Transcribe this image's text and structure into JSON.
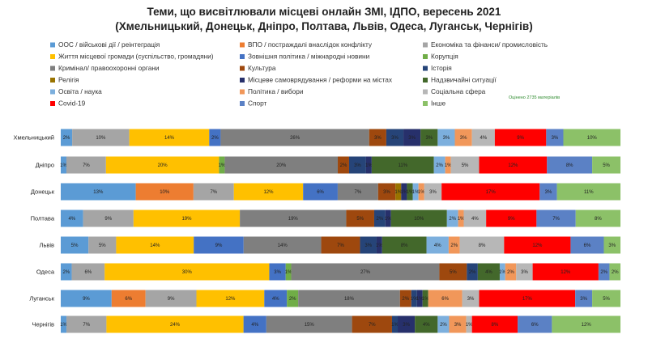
{
  "title_line1": "Теми, що висвітлювали місцеві онлайн ЗМІ, ІДПО, вересень 2021",
  "title_line2": "(Хмельницький, Донецьк, Дніпро, Полтава, Львів, Одеса, Луганськ, Чернігів)",
  "note": "Оцінено 2735 матеріалів",
  "colors": [
    "#5b9bd5",
    "#ed7d31",
    "#a5a5a5",
    "#ffc000",
    "#4472c4",
    "#70ad47",
    "#7f7f7f",
    "#9e480e",
    "#264478",
    "#997300",
    "#27306b",
    "#43682b",
    "#7cafdd",
    "#f1975a",
    "#b7b7b7",
    "#ff0000",
    "#5b81c5",
    "#8cc168"
  ],
  "chart_data": {
    "type": "bar",
    "stacked": "100%",
    "orientation": "horizontal",
    "categories": [
      "Хмельницький",
      "Дніпро",
      "Донецьк",
      "Полтава",
      "Львів",
      "Одеса",
      "Луганськ",
      "Чернігів"
    ],
    "series": [
      {
        "name": "ООС / військові дії / реінтеграція",
        "values": [
          2,
          1,
          13,
          4,
          5,
          2,
          9,
          1
        ]
      },
      {
        "name": "ВПО / постраждалі внаслідок конфлікту",
        "values": [
          0,
          0,
          10,
          0,
          0,
          0,
          6,
          0
        ]
      },
      {
        "name": "Економіка та фінанси/ промисловість",
        "values": [
          10,
          7,
          7,
          9,
          5,
          6,
          9,
          7
        ]
      },
      {
        "name": "Життя місцевої громади (суспільство, громадяни)",
        "values": [
          14,
          20,
          12,
          19,
          14,
          30,
          12,
          24
        ]
      },
      {
        "name": "Зовнішня політика / міжнародні новини",
        "values": [
          2,
          0,
          6,
          0,
          9,
          3,
          4,
          4
        ]
      },
      {
        "name": "Корупція",
        "values": [
          0,
          1,
          0,
          0,
          0,
          1,
          2,
          0
        ]
      },
      {
        "name": "Кримінал/ правоохоронні органи",
        "values": [
          26,
          20,
          7,
          19,
          14,
          27,
          18,
          15
        ]
      },
      {
        "name": "Культура",
        "values": [
          3,
          2,
          3,
          5,
          7,
          5,
          2,
          7
        ]
      },
      {
        "name": "Історія",
        "values": [
          3,
          3,
          0,
          2,
          3,
          2,
          1,
          1
        ]
      },
      {
        "name": "Релігія",
        "values": [
          0,
          0,
          1,
          0,
          0,
          0,
          0,
          0
        ]
      },
      {
        "name": "Місцеве самоврядування / реформи на містах",
        "values": [
          3,
          1,
          1,
          1,
          1,
          0,
          1,
          3
        ]
      },
      {
        "name": "Надзвичайні ситуації",
        "values": [
          3,
          11,
          1,
          10,
          8,
          4,
          1,
          4
        ]
      },
      {
        "name": "Освіта / наука",
        "values": [
          3,
          2,
          1,
          2,
          4,
          1,
          0,
          2
        ]
      },
      {
        "name": "Політика / вибори",
        "values": [
          3,
          1,
          1,
          1,
          2,
          2,
          6,
          3
        ]
      },
      {
        "name": "Соціальна сфера",
        "values": [
          4,
          5,
          3,
          4,
          8,
          3,
          3,
          1
        ]
      },
      {
        "name": "Covid-19",
        "values": [
          9,
          12,
          17,
          9,
          12,
          12,
          17,
          8
        ]
      },
      {
        "name": "Спорт",
        "values": [
          3,
          8,
          3,
          7,
          6,
          2,
          3,
          6
        ]
      },
      {
        "name": "Інше",
        "values": [
          10,
          5,
          11,
          8,
          3,
          2,
          5,
          12
        ]
      }
    ]
  }
}
